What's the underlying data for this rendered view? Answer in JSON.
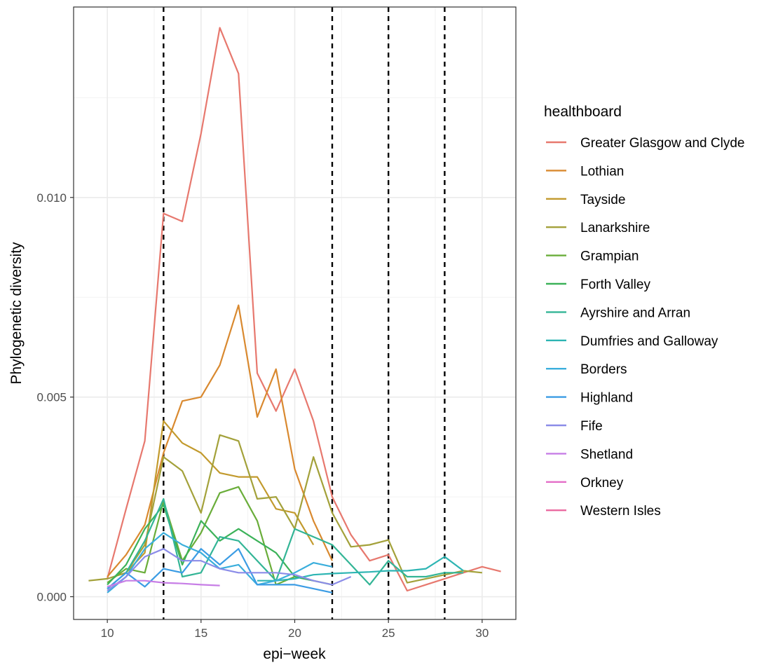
{
  "chart_data": {
    "type": "line",
    "xlabel": "epi−week",
    "ylabel": "Phylogenetic diversity",
    "xlim": [
      8.2,
      31.8
    ],
    "ylim": [
      -0.00057,
      0.01477
    ],
    "x_ticks": [
      10,
      15,
      20,
      25,
      30
    ],
    "x_tick_labels": [
      "10",
      "15",
      "20",
      "25",
      "30"
    ],
    "y_ticks": [
      0,
      0.005,
      0.01
    ],
    "y_tick_labels": [
      "0.000",
      "0.005",
      "0.010"
    ],
    "grid": true,
    "vlines": [
      13,
      22,
      25,
      28
    ],
    "legend": {
      "title": "healthboard",
      "placement": "right"
    },
    "series": [
      {
        "name": "Greater Glasgow and Clyde",
        "color": "#e7786e",
        "x": [
          10,
          11,
          12,
          13,
          14,
          15,
          16,
          17,
          18,
          19,
          20,
          21,
          22,
          23,
          24,
          25,
          26,
          27,
          28,
          29,
          30,
          31
        ],
        "y": [
          0.00045,
          0.0022,
          0.0039,
          0.0096,
          0.0094,
          0.0116,
          0.01425,
          0.0131,
          0.0056,
          0.00465,
          0.0057,
          0.0044,
          0.0025,
          0.00155,
          0.0009,
          0.00105,
          0.00015,
          0.0003,
          0.00045,
          0.0006,
          0.00075,
          0.00063
        ]
      },
      {
        "name": "Lothian",
        "color": "#d9892f",
        "x": [
          10,
          11,
          12,
          13,
          14,
          15,
          16,
          17,
          18,
          19,
          20,
          21,
          22
        ],
        "y": [
          0.0005,
          0.00105,
          0.0018,
          0.0036,
          0.0049,
          0.005,
          0.0058,
          0.0073,
          0.0045,
          0.0057,
          0.0032,
          0.0019,
          0.0009
        ]
      },
      {
        "name": "Tayside",
        "color": "#c29a2d",
        "x": [
          11,
          12,
          13,
          14,
          15,
          16,
          17,
          18,
          19,
          20,
          21
        ],
        "y": [
          0.0006,
          0.0011,
          0.0044,
          0.00385,
          0.0036,
          0.0031,
          0.003,
          0.003,
          0.0022,
          0.0021,
          0.0013
        ]
      },
      {
        "name": "Lanarkshire",
        "color": "#a3a13a",
        "x": [
          9,
          10,
          11,
          12,
          13,
          14,
          15,
          16,
          17,
          18,
          19,
          20,
          21,
          22,
          23,
          24,
          25,
          26,
          27,
          28,
          29,
          30
        ],
        "y": [
          0.0004,
          0.00045,
          0.0006,
          0.0013,
          0.0035,
          0.00315,
          0.0021,
          0.00405,
          0.0039,
          0.00245,
          0.0025,
          0.0017,
          0.0035,
          0.0021,
          0.00125,
          0.0013,
          0.00142,
          0.00035,
          0.00045,
          0.00055,
          0.00065,
          0.0006
        ]
      },
      {
        "name": "Grampian",
        "color": "#6aad3a",
        "x": [
          10,
          11,
          12,
          13,
          14,
          15,
          16,
          17,
          18,
          19,
          20,
          21,
          22
        ],
        "y": [
          0.00035,
          0.0007,
          0.0006,
          0.0024,
          0.0009,
          0.0016,
          0.0026,
          0.00275,
          0.0019,
          0.0003,
          0.0005,
          0.0004,
          0.0003
        ]
      },
      {
        "name": "Forth Valley",
        "color": "#3cb259",
        "x": [
          10,
          11,
          12,
          13,
          14,
          15,
          16,
          17,
          18,
          19,
          20,
          21
        ],
        "y": [
          0.0003,
          0.0008,
          0.0017,
          0.0023,
          0.0008,
          0.0019,
          0.0014,
          0.0017,
          0.0014,
          0.0011,
          0.0005,
          0.0004
        ]
      },
      {
        "name": "Ayrshire and Arran",
        "color": "#33b596",
        "x": [
          10,
          11,
          12,
          13,
          14,
          15,
          16,
          17,
          18,
          19,
          20,
          21,
          22,
          23,
          24,
          25,
          26,
          27,
          28,
          29
        ],
        "y": [
          0.0002,
          0.0006,
          0.0014,
          0.00245,
          0.0005,
          0.0006,
          0.0015,
          0.0014,
          0.0009,
          0.0004,
          0.0017,
          0.0015,
          0.0013,
          0.0008,
          0.0003,
          0.0009,
          0.0005,
          0.0005,
          0.0006,
          0.0006
        ]
      },
      {
        "name": "Dumfries and Galloway",
        "color": "#2db5b3",
        "x": [
          18,
          19,
          20,
          21,
          22,
          23,
          24,
          25,
          26,
          27,
          28,
          29
        ],
        "y": [
          0.0004,
          0.0004,
          0.00045,
          0.00055,
          0.00058,
          0.0006,
          0.00062,
          0.00065,
          0.00065,
          0.0007,
          0.001,
          0.00065
        ]
      },
      {
        "name": "Borders",
        "color": "#3aaedc",
        "x": [
          10,
          11,
          12,
          13,
          14,
          15,
          16,
          17,
          18,
          19,
          20,
          21,
          22
        ],
        "y": [
          0.0001,
          0.0005,
          0.0012,
          0.0016,
          0.0013,
          0.0011,
          0.0007,
          0.0008,
          0.0003,
          0.0004,
          0.0006,
          0.00085,
          0.00075
        ]
      },
      {
        "name": "Highland",
        "color": "#3b9ce4",
        "x": [
          10,
          11,
          12,
          13,
          14,
          15,
          16,
          17,
          18,
          19,
          20,
          21,
          22
        ],
        "y": [
          0.0002,
          0.0006,
          0.00025,
          0.0007,
          0.0006,
          0.0012,
          0.0008,
          0.0012,
          0.0003,
          0.0003,
          0.0003,
          0.0002,
          0.0001
        ]
      },
      {
        "name": "Fife",
        "color": "#8b8ce8",
        "x": [
          10,
          11,
          12,
          13,
          14,
          15,
          16,
          17,
          18,
          19,
          20,
          21,
          22,
          23
        ],
        "y": [
          0.00015,
          0.0005,
          0.001,
          0.0012,
          0.0009,
          0.0009,
          0.0007,
          0.0006,
          0.0006,
          0.0006,
          0.00055,
          0.0004,
          0.0003,
          0.0005
        ]
      },
      {
        "name": "Shetland",
        "color": "#c77ee6",
        "x": [
          10,
          11,
          12,
          13,
          14,
          15,
          16
        ],
        "y": [
          0.00025,
          0.0004,
          0.0004,
          0.00035,
          0.00033,
          0.0003,
          0.00028
        ]
      },
      {
        "name": "Orkney",
        "color": "#e46ec8",
        "x": [],
        "y": []
      },
      {
        "name": "Western Isles",
        "color": "#ea6aa0",
        "x": [],
        "y": []
      }
    ]
  }
}
